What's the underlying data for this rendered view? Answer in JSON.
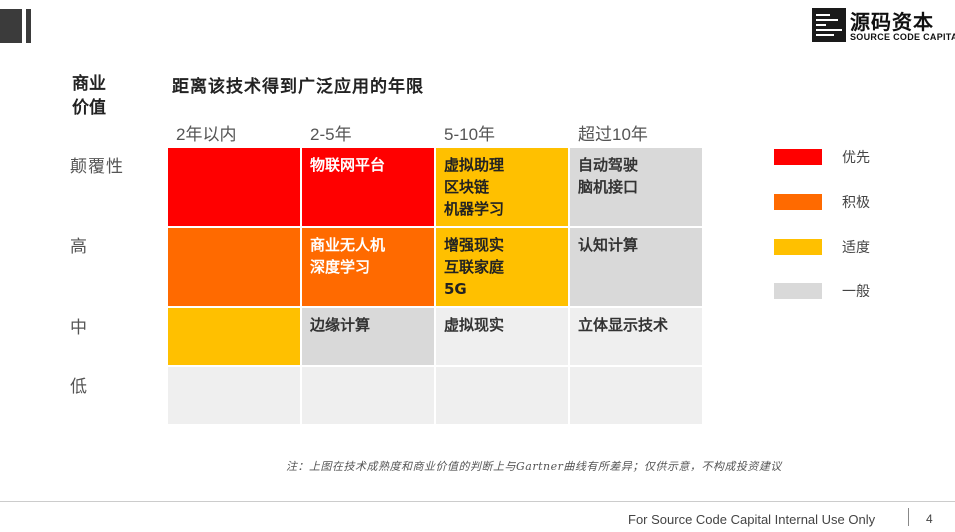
{
  "logo": {
    "cn": "源码资本",
    "en": "SOURCE CODE CAPITAL"
  },
  "y_axis_title": [
    "商业",
    "价值"
  ],
  "x_axis_title": "距离该技术得到广泛应用的年限",
  "columns": [
    "2年以内",
    "2-5年",
    "5-10年",
    "超过10年"
  ],
  "rows": [
    "颠覆性",
    "高",
    "中",
    "低"
  ],
  "colors": {
    "red": "#ff0000",
    "orange": "#ff6a00",
    "yellow": "#ffc000",
    "gray": "#d9d9d9",
    "light": "#efefef"
  },
  "grid": [
    [
      {
        "style": "red",
        "text": ""
      },
      {
        "style": "red",
        "text": "物联网平台"
      },
      {
        "style": "yellow",
        "text": "虚拟助理\n区块链\n机器学习"
      },
      {
        "style": "gray",
        "text": "自动驾驶\n脑机接口"
      }
    ],
    [
      {
        "style": "orange",
        "text": ""
      },
      {
        "style": "orange",
        "text": "商业无人机\n深度学习"
      },
      {
        "style": "yellow",
        "text": "增强现实\n互联家庭\n5G"
      },
      {
        "style": "gray",
        "text": "认知计算"
      }
    ],
    [
      {
        "style": "yellow",
        "text": ""
      },
      {
        "style": "gray",
        "text": "边缘计算"
      },
      {
        "style": "light",
        "text": "虚拟现实"
      },
      {
        "style": "light",
        "text": "立体显示技术"
      }
    ],
    [
      {
        "style": "light",
        "text": ""
      },
      {
        "style": "light",
        "text": ""
      },
      {
        "style": "light",
        "text": ""
      },
      {
        "style": "light",
        "text": ""
      }
    ]
  ],
  "legend": [
    {
      "style": "red",
      "label": "优先"
    },
    {
      "style": "orange",
      "label": "积极"
    },
    {
      "style": "yellow",
      "label": "适度"
    },
    {
      "style": "gray",
      "label": "一般"
    }
  ],
  "note": "注：上图在技术成熟度和商业价值的判断上与Gartner曲线有所差异；仅供示意，不构成投资建议",
  "footer": {
    "text": "For Source Code Capital Internal Use Only",
    "page": "4"
  }
}
